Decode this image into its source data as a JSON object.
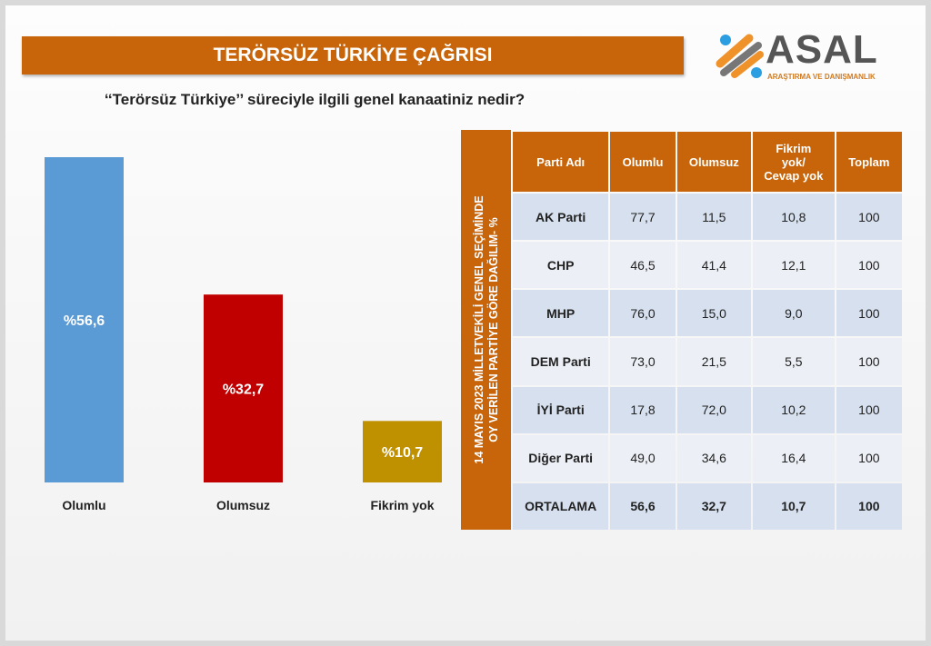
{
  "header": {
    "title": "TERÖRSÜZ TÜRKİYE ÇAĞRISI",
    "question": "‘‘Terörsüz Türkiye’’ süreciyle ilgili genel kanaatiniz nedir?"
  },
  "logo": {
    "name": "ASAL",
    "tagline": "ARAŞTIRMA VE DANIŞMANLIK",
    "colors": [
      "#f0922a",
      "#777777",
      "#2a9ee0"
    ]
  },
  "chart_data": {
    "type": "bar",
    "categories": [
      "Olumlu",
      "Olumsuz",
      "Fikrim yok"
    ],
    "values": [
      56.6,
      32.7,
      10.7
    ],
    "data_labels": [
      "%56,6",
      "%32,7",
      "%10,7"
    ],
    "colors": [
      "#5b9bd5",
      "#c00000",
      "#bf9000"
    ],
    "grid": false
  },
  "table": {
    "side_label": [
      "14 MAYIS 2023 MİLLETVEKİLİ GENEL SEÇİMİNDE",
      "OY VERİLEN PARTİYE GÖRE DAĞILIM- %"
    ],
    "headers": [
      "Parti Adı",
      "Olumlu",
      "Olumsuz",
      "Fikrim yok/ Cevap yok",
      "Toplam"
    ],
    "rows": [
      [
        "AK Parti",
        "77,7",
        "11,5",
        "10,8",
        "100"
      ],
      [
        "CHP",
        "46,5",
        "41,4",
        "12,1",
        "100"
      ],
      [
        "MHP",
        "76,0",
        "15,0",
        "9,0",
        "100"
      ],
      [
        "DEM Parti",
        "73,0",
        "21,5",
        "5,5",
        "100"
      ],
      [
        "İYİ Parti",
        "17,8",
        "72,0",
        "10,2",
        "100"
      ],
      [
        "Diğer Parti",
        "49,0",
        "34,6",
        "16,4",
        "100"
      ],
      [
        "ORTALAMA",
        "56,6",
        "32,7",
        "10,7",
        "100"
      ]
    ]
  }
}
